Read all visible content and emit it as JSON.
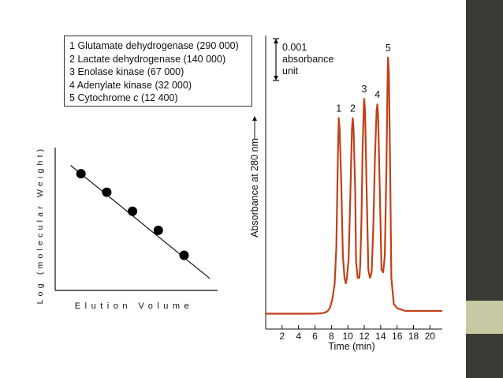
{
  "colors": {
    "sidebar_segments": [
      "#3b3b36",
      "#c8c9a3",
      "#3b3b36"
    ],
    "trace": "#c0411a",
    "ink": "#111111"
  },
  "legend": {
    "items": [
      {
        "num": "1",
        "name": "Glutamate dehydrogenase",
        "mw": "(290 000)"
      },
      {
        "num": "2",
        "name": "Lactate dehydrogenase",
        "mw": "(140 000)"
      },
      {
        "num": "3",
        "name": "Enolase kinase",
        "mw": "(67 000)"
      },
      {
        "num": "4",
        "name": "Adenylate kinase",
        "mw": "(32 000)"
      },
      {
        "num": "5",
        "name": "Cytochrome c",
        "mw": "(12 400)"
      }
    ]
  },
  "chart_data": [
    {
      "type": "scatter",
      "title": "",
      "xlabel": "Elution Volume",
      "ylabel": "Log (molecular Weight)",
      "x": [
        1,
        2,
        3,
        4,
        5
      ],
      "y": [
        5.46,
        5.15,
        4.83,
        4.51,
        4.09
      ],
      "trendline": {
        "x": [
          0.6,
          6.0
        ],
        "y": [
          5.6,
          3.7
        ]
      },
      "xlim": [
        0,
        6.3
      ],
      "ylim": [
        3.5,
        5.9
      ],
      "ticks": false,
      "grid": false
    },
    {
      "type": "line",
      "title": "",
      "xlabel": "Time (min)",
      "ylabel": "Absorbance at 280 nm",
      "x_ticks": [
        2,
        4,
        6,
        8,
        10,
        12,
        14,
        16,
        18,
        20
      ],
      "xlim": [
        0,
        21.5
      ],
      "ylim": [
        0,
        0.0105
      ],
      "scale_bar": {
        "value": "0.001",
        "label_line1": "absorbance",
        "label_line2": "unit"
      },
      "peaks": [
        {
          "label": "1",
          "time": 8.9,
          "absorbance": 0.0072
        },
        {
          "label": "2",
          "time": 10.6,
          "absorbance": 0.0072
        },
        {
          "label": "3",
          "time": 12.0,
          "absorbance": 0.0079
        },
        {
          "label": "4",
          "time": 13.6,
          "absorbance": 0.0077
        },
        {
          "label": "5",
          "time": 14.9,
          "absorbance": 0.0094
        }
      ],
      "series": [
        {
          "x": [
            0,
            2,
            4,
            6,
            7.0,
            7.5,
            7.8,
            8.1,
            8.4,
            8.6,
            8.8,
            8.9,
            9.0,
            9.2,
            9.4,
            9.6,
            9.75,
            9.9,
            10.1,
            10.3,
            10.5,
            10.6,
            10.7,
            10.9,
            11.0,
            11.2,
            11.4,
            11.5,
            11.65,
            11.8,
            11.95,
            12.0,
            12.1,
            12.3,
            12.5,
            12.7,
            12.9,
            13.1,
            13.3,
            13.5,
            13.6,
            13.7,
            13.9,
            14.1,
            14.3,
            14.5,
            14.7,
            14.85,
            14.9,
            15.0,
            15.15,
            15.3,
            15.6,
            16.0,
            17,
            18,
            19,
            20,
            21.5
          ],
          "y": [
            0.0001,
            0.0001,
            0.0001,
            0.0001,
            0.00012,
            0.00018,
            0.0003,
            0.0006,
            0.0012,
            0.0025,
            0.006,
            0.0072,
            0.0068,
            0.0048,
            0.0022,
            0.0014,
            0.0012,
            0.0014,
            0.0021,
            0.0043,
            0.0068,
            0.0072,
            0.0068,
            0.0045,
            0.002,
            0.0014,
            0.0014,
            0.0018,
            0.0034,
            0.006,
            0.0077,
            0.0079,
            0.0074,
            0.0045,
            0.0017,
            0.0014,
            0.0016,
            0.0032,
            0.0058,
            0.0075,
            0.0077,
            0.0072,
            0.0045,
            0.0017,
            0.0016,
            0.0022,
            0.0055,
            0.0088,
            0.0094,
            0.0088,
            0.0055,
            0.0014,
            0.00045,
            0.0003,
            0.0002,
            0.0002,
            0.0002,
            0.0002,
            0.0002
          ]
        }
      ]
    }
  ]
}
